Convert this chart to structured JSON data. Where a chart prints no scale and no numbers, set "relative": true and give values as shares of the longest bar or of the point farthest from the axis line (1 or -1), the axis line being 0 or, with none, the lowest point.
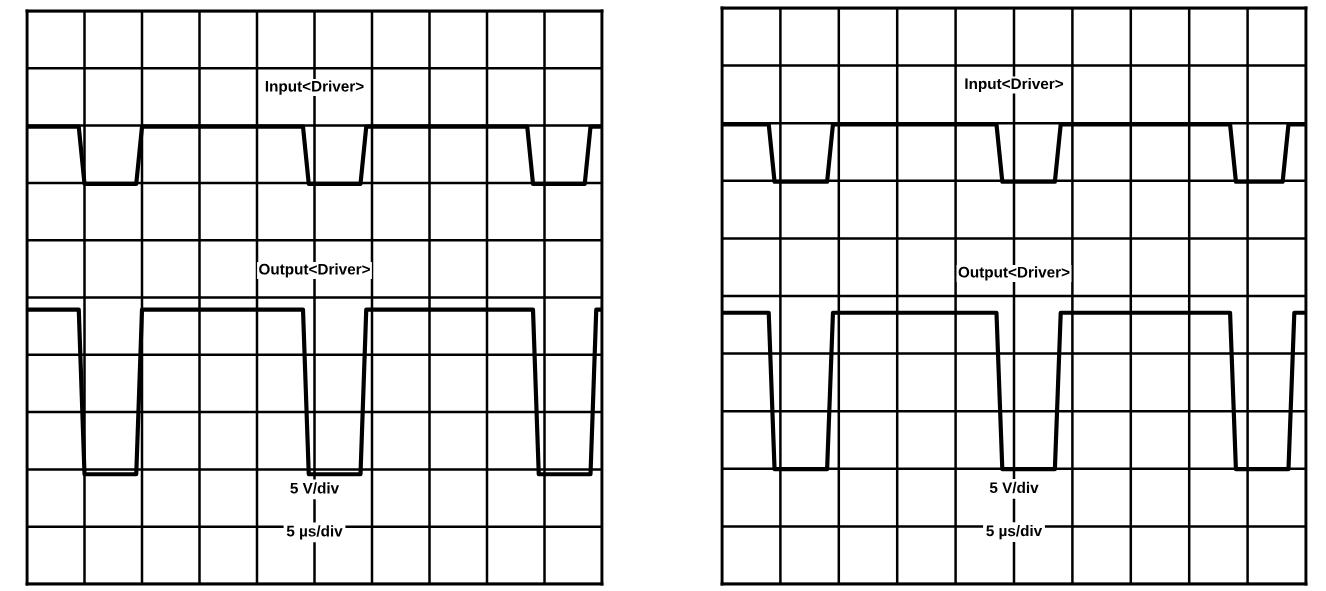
{
  "chart_data": [
    {
      "type": "line",
      "relative": true,
      "grid": true,
      "tick_labels": false,
      "categories": [
        null,
        null,
        null,
        null,
        null,
        null,
        null,
        null,
        null,
        null,
        null,
        null,
        null,
        null,
        null,
        null,
        null,
        null,
        null,
        null,
        null,
        null,
        null,
        null,
        null,
        null,
        null,
        null,
        null,
        null,
        null,
        null,
        null,
        null,
        null,
        null,
        null,
        null,
        null,
        null,
        null,
        null,
        null,
        null,
        null,
        null,
        null,
        null,
        null,
        null,
        null,
        null,
        null,
        null,
        null,
        null,
        null,
        null,
        null,
        null,
        null,
        null,
        null,
        null,
        null,
        null,
        null,
        null,
        null,
        null,
        null,
        null,
        null,
        null,
        null,
        null,
        null,
        null,
        null,
        null,
        null,
        null,
        null,
        null,
        null,
        null,
        null,
        null,
        null,
        null,
        null,
        null,
        null,
        null,
        null,
        null,
        null,
        null,
        null,
        null,
        null
      ],
      "series": [
        {
          "name": "Input<Driver>",
          "color": "#000000",
          "values": [
            1,
            1,
            1,
            1,
            1,
            1,
            1,
            1,
            1,
            1,
            0.875,
            0.875,
            0.875,
            0.875,
            0.875,
            0.875,
            0.875,
            0.875,
            0.875,
            0.875,
            1,
            1,
            1,
            1,
            1,
            1,
            1,
            1,
            1,
            1,
            1,
            1,
            1,
            1,
            1,
            1,
            1,
            1,
            1,
            1,
            1,
            1,
            1,
            1,
            1,
            1,
            1,
            1,
            1,
            0.875,
            0.875,
            0.875,
            0.875,
            0.875,
            0.875,
            0.875,
            0.875,
            0.875,
            0.875,
            1,
            1,
            1,
            1,
            1,
            1,
            1,
            1,
            1,
            1,
            1,
            1,
            1,
            1,
            1,
            1,
            1,
            1,
            1,
            1,
            1,
            1,
            1,
            1,
            1,
            1,
            1,
            1,
            1,
            0.875,
            0.875,
            0.875,
            0.875,
            0.875,
            0.875,
            0.875,
            0.875,
            0.875,
            0.875,
            1,
            1,
            1
          ]
        },
        {
          "name": "Output<Driver>",
          "color": "#000000",
          "values": [
            0.6,
            0.6,
            0.6,
            0.6,
            0.6,
            0.6,
            0.6,
            0.6,
            0.6,
            0.6,
            0.24,
            0.24,
            0.24,
            0.24,
            0.24,
            0.24,
            0.24,
            0.24,
            0.24,
            0.24,
            0.6,
            0.6,
            0.6,
            0.6,
            0.6,
            0.6,
            0.6,
            0.6,
            0.6,
            0.6,
            0.6,
            0.6,
            0.6,
            0.6,
            0.6,
            0.6,
            0.6,
            0.6,
            0.6,
            0.6,
            0.6,
            0.6,
            0.6,
            0.6,
            0.6,
            0.6,
            0.6,
            0.6,
            0.6,
            0.24,
            0.24,
            0.24,
            0.24,
            0.24,
            0.24,
            0.24,
            0.24,
            0.24,
            0.24,
            0.6,
            0.6,
            0.6,
            0.6,
            0.6,
            0.6,
            0.6,
            0.6,
            0.6,
            0.6,
            0.6,
            0.6,
            0.6,
            0.6,
            0.6,
            0.6,
            0.6,
            0.6,
            0.6,
            0.6,
            0.6,
            0.6,
            0.6,
            0.6,
            0.6,
            0.6,
            0.6,
            0.6,
            0.6,
            0.6,
            0.24,
            0.24,
            0.24,
            0.24,
            0.24,
            0.24,
            0.24,
            0.24,
            0.24,
            0.24,
            0.6,
            0.6
          ]
        }
      ],
      "annotations": [
        "5 V/div",
        "5 µs/div"
      ]
    },
    {
      "type": "line",
      "relative": true,
      "grid": true,
      "tick_labels": false,
      "categories": [
        null,
        null,
        null,
        null,
        null,
        null,
        null,
        null,
        null,
        null,
        null,
        null,
        null,
        null,
        null,
        null,
        null,
        null,
        null,
        null,
        null,
        null,
        null,
        null,
        null,
        null,
        null,
        null,
        null,
        null,
        null,
        null,
        null,
        null,
        null,
        null,
        null,
        null,
        null,
        null,
        null,
        null,
        null,
        null,
        null,
        null,
        null,
        null,
        null,
        null,
        null,
        null,
        null,
        null,
        null,
        null,
        null,
        null,
        null,
        null,
        null,
        null,
        null,
        null,
        null,
        null,
        null,
        null,
        null,
        null,
        null,
        null,
        null,
        null,
        null,
        null,
        null,
        null,
        null,
        null,
        null,
        null,
        null,
        null,
        null,
        null,
        null,
        null,
        null,
        null,
        null,
        null,
        null,
        null,
        null,
        null,
        null,
        null,
        null,
        null,
        null
      ],
      "series": [
        {
          "name": "Input<Driver>",
          "color": "#000000",
          "values": [
            1,
            1,
            1,
            1,
            1,
            1,
            1,
            1,
            1,
            0.875,
            0.875,
            0.875,
            0.875,
            0.875,
            0.875,
            0.875,
            0.875,
            0.875,
            0.875,
            1,
            1,
            1,
            1,
            1,
            1,
            1,
            1,
            1,
            1,
            1,
            1,
            1,
            1,
            1,
            1,
            1,
            1,
            1,
            1,
            1,
            1,
            1,
            1,
            1,
            1,
            1,
            1,
            1,
            0.875,
            0.875,
            0.875,
            0.875,
            0.875,
            0.875,
            0.875,
            0.875,
            0.875,
            0.875,
            1,
            1,
            1,
            1,
            1,
            1,
            1,
            1,
            1,
            1,
            1,
            1,
            1,
            1,
            1,
            1,
            1,
            1,
            1,
            1,
            1,
            1,
            1,
            1,
            1,
            1,
            1,
            1,
            1,
            1,
            0.875,
            0.875,
            0.875,
            0.875,
            0.875,
            0.875,
            0.875,
            0.875,
            0.875,
            1,
            1,
            1,
            1
          ]
        },
        {
          "name": "Output<Driver>",
          "color": "#000000",
          "values": [
            0.59,
            0.59,
            0.59,
            0.59,
            0.59,
            0.59,
            0.59,
            0.59,
            0.59,
            0.25,
            0.25,
            0.25,
            0.25,
            0.25,
            0.25,
            0.25,
            0.25,
            0.25,
            0.25,
            0.59,
            0.59,
            0.59,
            0.59,
            0.59,
            0.59,
            0.59,
            0.59,
            0.59,
            0.59,
            0.59,
            0.59,
            0.59,
            0.59,
            0.59,
            0.59,
            0.59,
            0.59,
            0.59,
            0.59,
            0.59,
            0.59,
            0.59,
            0.59,
            0.59,
            0.59,
            0.59,
            0.59,
            0.59,
            0.25,
            0.25,
            0.25,
            0.25,
            0.25,
            0.25,
            0.25,
            0.25,
            0.25,
            0.25,
            0.59,
            0.59,
            0.59,
            0.59,
            0.59,
            0.59,
            0.59,
            0.59,
            0.59,
            0.59,
            0.59,
            0.59,
            0.59,
            0.59,
            0.59,
            0.59,
            0.59,
            0.59,
            0.59,
            0.59,
            0.59,
            0.59,
            0.59,
            0.59,
            0.59,
            0.59,
            0.59,
            0.59,
            0.59,
            0.59,
            0.25,
            0.25,
            0.25,
            0.25,
            0.25,
            0.25,
            0.25,
            0.25,
            0.25,
            0.25,
            0.59,
            0.59,
            0.59
          ]
        }
      ],
      "annotations": [
        "5 V/div",
        "5 µs/div"
      ]
    }
  ]
}
